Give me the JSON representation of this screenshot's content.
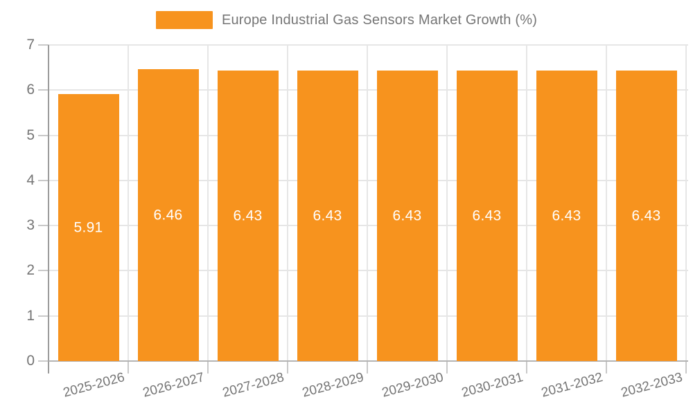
{
  "chart_data": {
    "type": "bar",
    "title": "Europe Industrial Gas Sensors Market Growth (%)",
    "categories": [
      "2025-2026",
      "2026-2027",
      "2027-2028",
      "2028-2029",
      "2029-2030",
      "2030-2031",
      "2031-2032",
      "2032-2033"
    ],
    "values": [
      5.91,
      6.46,
      6.43,
      6.43,
      6.43,
      6.43,
      6.43,
      6.43
    ],
    "value_labels": [
      "5.91",
      "6.46",
      "6.43",
      "6.43",
      "6.43",
      "6.43",
      "6.43",
      "6.43"
    ],
    "xlabel": "",
    "ylabel": "",
    "ylim": [
      0,
      7
    ],
    "ytick_interval": 1,
    "ytick_labels": [
      "0",
      "1",
      "2",
      "3",
      "4",
      "5",
      "6",
      "7"
    ],
    "grid": true,
    "legend_position": "top",
    "legend_entries": [
      "Europe Industrial Gas Sensors Market Growth (%)"
    ],
    "colors": {
      "bar": "#F7931E",
      "grid": "#E6E6E6",
      "y_axis_line": "#9C9C9C",
      "x_axis_line": "#B3B3B3",
      "tick": "#C9C9C9",
      "text": "#757575",
      "value_label": "#FFFFFF"
    }
  }
}
